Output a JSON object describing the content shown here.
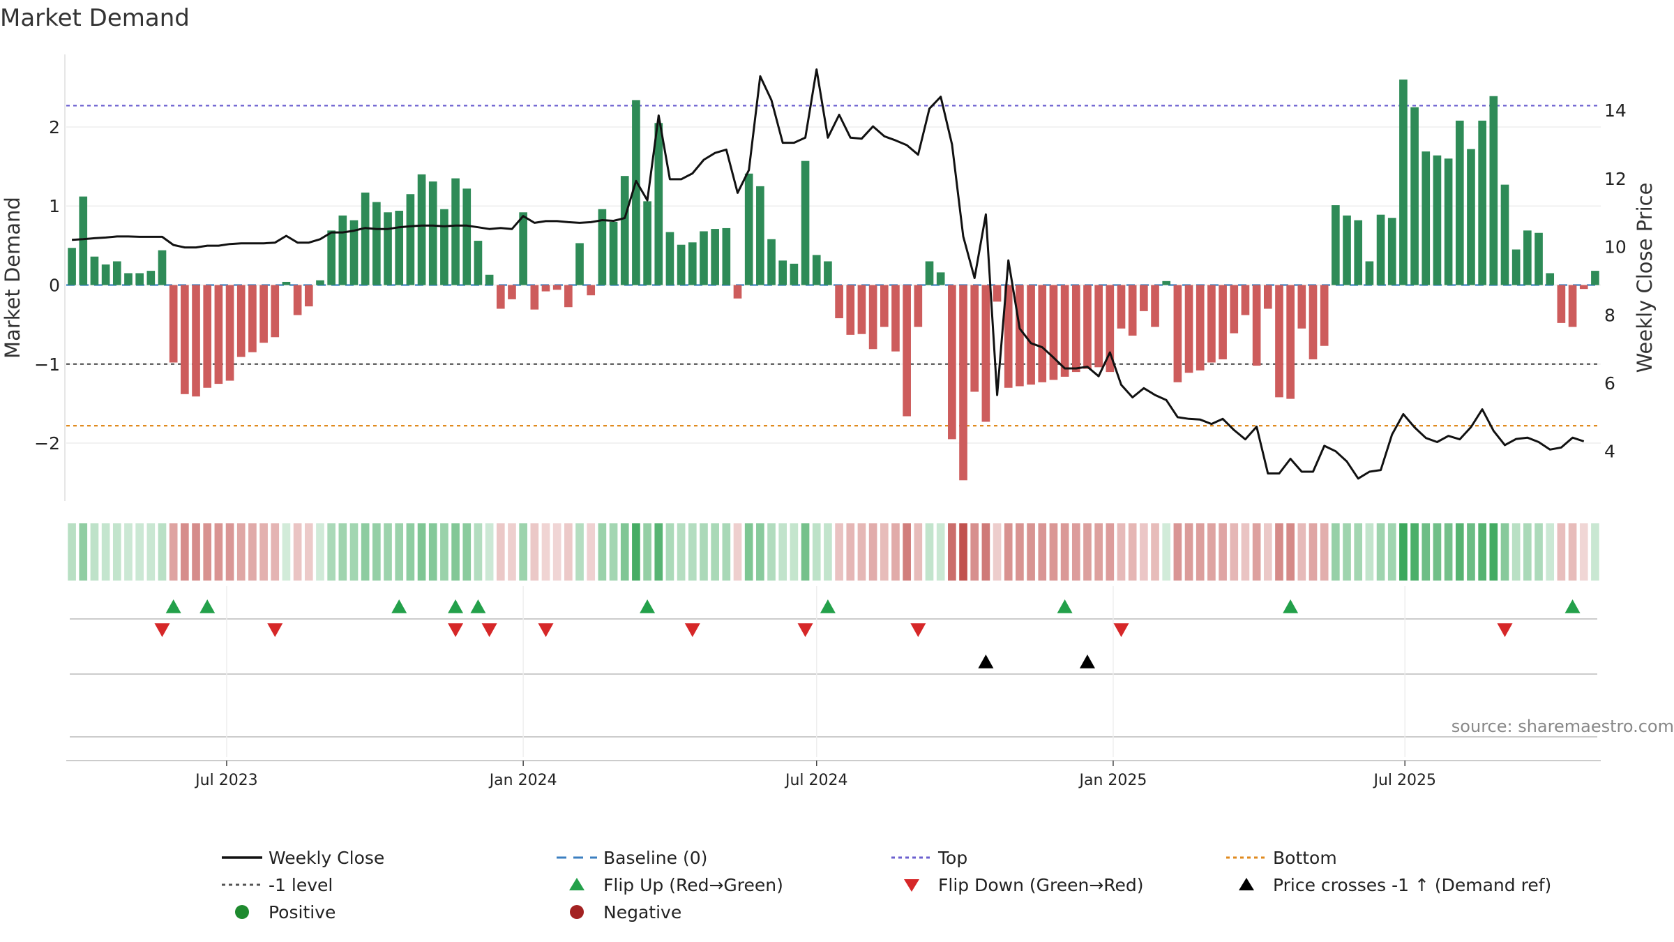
{
  "chart_data": {
    "type": "bar",
    "title": "Market Demand",
    "ylabel_left": "Market Demand",
    "ylabel_right": "Weekly Close Price",
    "source": "source: sharemaestro.com",
    "ylim_left": [
      -2.75,
      2.9
    ],
    "ylim_right": [
      2.5,
      15.6
    ],
    "yticks_left": [
      2,
      1,
      0,
      -1,
      -2
    ],
    "yticks_left_labels": [
      "2",
      "1",
      "0",
      "−1",
      "−2"
    ],
    "yticks_right": [
      14,
      12,
      10,
      8,
      6,
      4
    ],
    "x_start": "2023-03-27",
    "x_step_days": 7,
    "x_end": "2025-09-29",
    "xticks": [
      {
        "date": "2023-07-01",
        "label": "Jul 2023"
      },
      {
        "date": "2024-01-01",
        "label": "Jan 2024"
      },
      {
        "date": "2024-07-01",
        "label": "Jul 2024"
      },
      {
        "date": "2025-01-01",
        "label": "Jan 2025"
      },
      {
        "date": "2025-07-01",
        "label": "Jul 2025"
      }
    ],
    "reference_lines": [
      {
        "name": "Top",
        "value": 2.27,
        "color": "#6b5fcf"
      },
      {
        "name": "-1 level",
        "value": -1.0,
        "color": "#555555"
      },
      {
        "name": "Bottom",
        "value": -1.78,
        "color": "#e08a1e"
      },
      {
        "name": "Baseline (0)",
        "value": 0,
        "color": "#3b7fc0"
      }
    ],
    "series": [
      {
        "name": "Market Demand",
        "axis": "left",
        "values": [
          0.47,
          1.12,
          0.36,
          0.26,
          0.3,
          0.15,
          0.15,
          0.18,
          0.44,
          -0.98,
          -1.38,
          -1.41,
          -1.3,
          -1.25,
          -1.21,
          -0.91,
          -0.85,
          -0.73,
          -0.66,
          0.04,
          -0.38,
          -0.27,
          0.06,
          0.69,
          0.88,
          0.82,
          1.17,
          1.05,
          0.92,
          0.94,
          1.15,
          1.4,
          1.31,
          0.96,
          1.35,
          1.22,
          0.56,
          0.13,
          -0.3,
          -0.18,
          0.92,
          -0.31,
          -0.08,
          -0.06,
          -0.28,
          0.53,
          -0.13,
          0.96,
          0.8,
          1.38,
          2.34,
          1.06,
          2.05,
          0.67,
          0.51,
          0.54,
          0.68,
          0.71,
          0.72,
          -0.17,
          1.41,
          1.25,
          0.58,
          0.31,
          0.27,
          1.57,
          0.38,
          0.3,
          -0.42,
          -0.63,
          -0.62,
          -0.81,
          -0.53,
          -0.84,
          -1.66,
          -0.53,
          0.3,
          0.16,
          -1.95,
          -2.47,
          -1.35,
          -1.73,
          -0.21,
          -1.3,
          -1.28,
          -1.26,
          -1.23,
          -1.2,
          -1.16,
          -1.1,
          -1.06,
          -1.04,
          -1.1,
          -0.55,
          -0.64,
          -0.33,
          -0.53,
          0.05,
          -1.23,
          -1.11,
          -1.08,
          -0.98,
          -0.94,
          -0.61,
          -0.38,
          -1.02,
          -0.3,
          -1.42,
          -1.44,
          -0.55,
          -0.94,
          -0.77,
          1.01,
          0.88,
          0.82,
          0.3,
          0.89,
          0.85,
          2.6,
          2.25,
          1.69,
          1.64,
          1.6,
          2.08,
          1.72,
          2.08,
          2.39,
          1.27,
          0.45,
          0.69,
          0.66,
          0.15,
          -0.48,
          -0.53,
          -0.05,
          0.18
        ]
      },
      {
        "name": "Weekly Close",
        "axis": "right",
        "values": [
          10.2,
          10.22,
          10.25,
          10.27,
          10.3,
          10.3,
          10.29,
          10.29,
          10.29,
          10.05,
          9.98,
          9.98,
          10.03,
          10.03,
          10.08,
          10.1,
          10.1,
          10.1,
          10.12,
          10.32,
          10.12,
          10.12,
          10.22,
          10.42,
          10.42,
          10.47,
          10.55,
          10.52,
          10.52,
          10.57,
          10.6,
          10.62,
          10.62,
          10.6,
          10.62,
          10.62,
          10.57,
          10.52,
          10.55,
          10.52,
          10.9,
          10.7,
          10.75,
          10.75,
          10.72,
          10.7,
          10.72,
          10.78,
          10.76,
          10.84,
          11.93,
          11.36,
          13.85,
          11.98,
          11.98,
          12.15,
          12.55,
          12.75,
          12.85,
          11.58,
          12.25,
          15.0,
          14.3,
          13.05,
          13.05,
          13.2,
          15.2,
          13.2,
          13.87,
          13.2,
          13.17,
          13.53,
          13.24,
          13.12,
          12.98,
          12.7,
          14.05,
          14.4,
          13.0,
          10.3,
          9.08,
          10.95,
          5.65,
          9.6,
          7.6,
          7.17,
          7.05,
          6.75,
          6.43,
          6.43,
          6.48,
          6.2,
          6.9,
          5.95,
          5.58,
          5.85,
          5.65,
          5.5,
          5.0,
          4.95,
          4.93,
          4.8,
          4.95,
          4.62,
          4.35,
          4.72,
          3.35,
          3.35,
          3.78,
          3.4,
          3.4,
          4.16,
          4.0,
          3.7,
          3.2,
          3.4,
          3.45,
          4.49,
          5.09,
          4.7,
          4.39,
          4.27,
          4.45,
          4.35,
          4.71,
          5.23,
          4.6,
          4.18,
          4.36,
          4.4,
          4.27,
          4.05,
          4.11,
          4.4,
          4.29
        ]
      }
    ],
    "flip_up_weeks": [
      9,
      12,
      29,
      34,
      36,
      51,
      67,
      88,
      108,
      133
    ],
    "flip_down_weeks": [
      8,
      18,
      34,
      37,
      42,
      55,
      65,
      75,
      93,
      127
    ],
    "price_cross_weeks": [
      81,
      90
    ],
    "legend": [
      {
        "label": "Weekly Close",
        "symbol": "line",
        "color": "#111111"
      },
      {
        "label": "Baseline (0)",
        "symbol": "dash",
        "color": "#3b7fc0"
      },
      {
        "label": "Top",
        "symbol": "dot",
        "color": "#6b5fcf"
      },
      {
        "label": "Bottom",
        "symbol": "dot",
        "color": "#e08a1e"
      },
      {
        "label": "-1 level",
        "symbol": "dot",
        "color": "#555555"
      },
      {
        "label": "Flip Up (Red→Green)",
        "symbol": "triangle-up",
        "color": "#23a04a"
      },
      {
        "label": "Flip Down (Green→Red)",
        "symbol": "triangle-down",
        "color": "#d62728"
      },
      {
        "label": "Price crosses -1 ↑ (Demand ref)",
        "symbol": "triangle-up",
        "color": "#000000"
      },
      {
        "label": "Positive",
        "symbol": "circle",
        "color": "#1e8a2e"
      },
      {
        "label": "Negative",
        "symbol": "circle",
        "color": "#a32222"
      }
    ],
    "colors": {
      "positive_bar": "#2e8b57",
      "negative_bar": "#cd5c5c",
      "strip_positive": "#3ca85c",
      "strip_negative": "#c0504d"
    }
  }
}
